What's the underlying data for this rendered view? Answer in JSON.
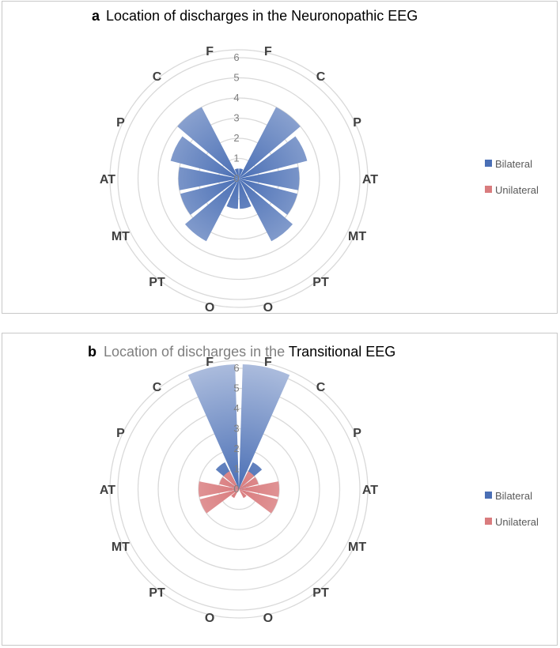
{
  "chart_data": [
    {
      "panel_letter": "a",
      "title": "Location of discharges in the Neuronopathic EEG",
      "type": "polar-bar",
      "r_ticks": [
        "0",
        "1",
        "2",
        "3",
        "4",
        "5",
        "6"
      ],
      "rlim": [
        0,
        6
      ],
      "grid": true,
      "legend_position": "right",
      "categories": [
        "F",
        "C",
        "P",
        "AT",
        "MT",
        "PT",
        "O",
        "O",
        "PT",
        "MT",
        "AT",
        "P",
        "C",
        "F"
      ],
      "series": [
        {
          "name": "Bilateral",
          "color": "#4a6fb5",
          "values": [
            0.5,
            4.0,
            3.5,
            3.0,
            3.0,
            3.5,
            1.5,
            1.5,
            3.5,
            3.0,
            3.0,
            3.5,
            4.0,
            0.5
          ]
        },
        {
          "name": "Unilateral",
          "color": "#d97c7e",
          "values": [
            0,
            0,
            0,
            0,
            0,
            0,
            0,
            0,
            0,
            0,
            0,
            0,
            0,
            0
          ]
        }
      ]
    },
    {
      "panel_letter": "b",
      "title_part1": "Location of discharges in the ",
      "title_part2": "Transitional EEG",
      "type": "polar-bar",
      "r_ticks": [
        "0",
        "1",
        "2",
        "3",
        "4",
        "5",
        "6"
      ],
      "rlim": [
        0,
        6
      ],
      "grid": true,
      "legend_position": "right",
      "categories": [
        "F",
        "C",
        "P",
        "AT",
        "MT",
        "PT",
        "O",
        "O",
        "PT",
        "MT",
        "AT",
        "P",
        "C",
        "F"
      ],
      "series": [
        {
          "name": "Bilateral",
          "color": "#4a6fb5",
          "values": [
            6.2,
            1.5,
            0.5,
            0.5,
            0,
            0,
            0,
            0,
            0,
            0,
            0.5,
            0.5,
            1.5,
            6.2
          ]
        },
        {
          "name": "Unilateral",
          "color": "#d97c7e",
          "values": [
            0,
            1.0,
            1.0,
            2.0,
            2.0,
            0.5,
            0,
            0,
            0.5,
            2.0,
            2.0,
            1.0,
            1.0,
            0
          ]
        }
      ]
    }
  ]
}
